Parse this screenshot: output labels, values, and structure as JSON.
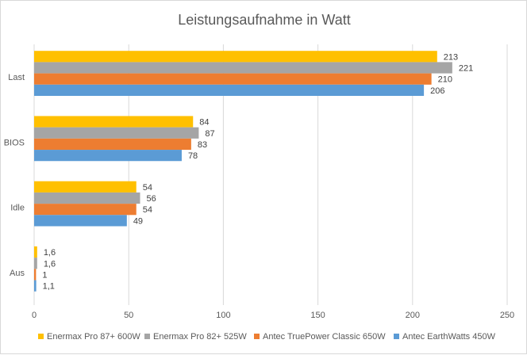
{
  "chart_data": {
    "type": "bar",
    "orientation": "horizontal",
    "title": "Leistungsaufnahme in Watt",
    "categories": [
      "Last",
      "BIOS",
      "Idle",
      "Aus"
    ],
    "series": [
      {
        "name": "Enermax Pro 87+ 600W",
        "color": "#ffc000",
        "values": [
          213,
          84,
          54,
          1.6
        ],
        "labels": [
          "213",
          "84",
          "54",
          "1,6"
        ]
      },
      {
        "name": "Enermax Pro 82+ 525W",
        "color": "#a5a5a5",
        "values": [
          221,
          87,
          56,
          1.6
        ],
        "labels": [
          "221",
          "87",
          "56",
          "1,6"
        ]
      },
      {
        "name": "Antec TruePower Classic 650W",
        "color": "#ed7d31",
        "values": [
          210,
          83,
          54,
          1
        ],
        "labels": [
          "210",
          "83",
          "54",
          "1"
        ]
      },
      {
        "name": "Antec EarthWatts 450W",
        "color": "#5b9bd5",
        "values": [
          206,
          78,
          49,
          1.1
        ],
        "labels": [
          "206",
          "78",
          "49",
          "1,1"
        ]
      }
    ],
    "xlim": [
      0,
      250
    ],
    "xticks": [
      0,
      50,
      100,
      150,
      200,
      250
    ],
    "grid": true,
    "legend": "bottom",
    "xlabel": "",
    "ylabel": ""
  }
}
